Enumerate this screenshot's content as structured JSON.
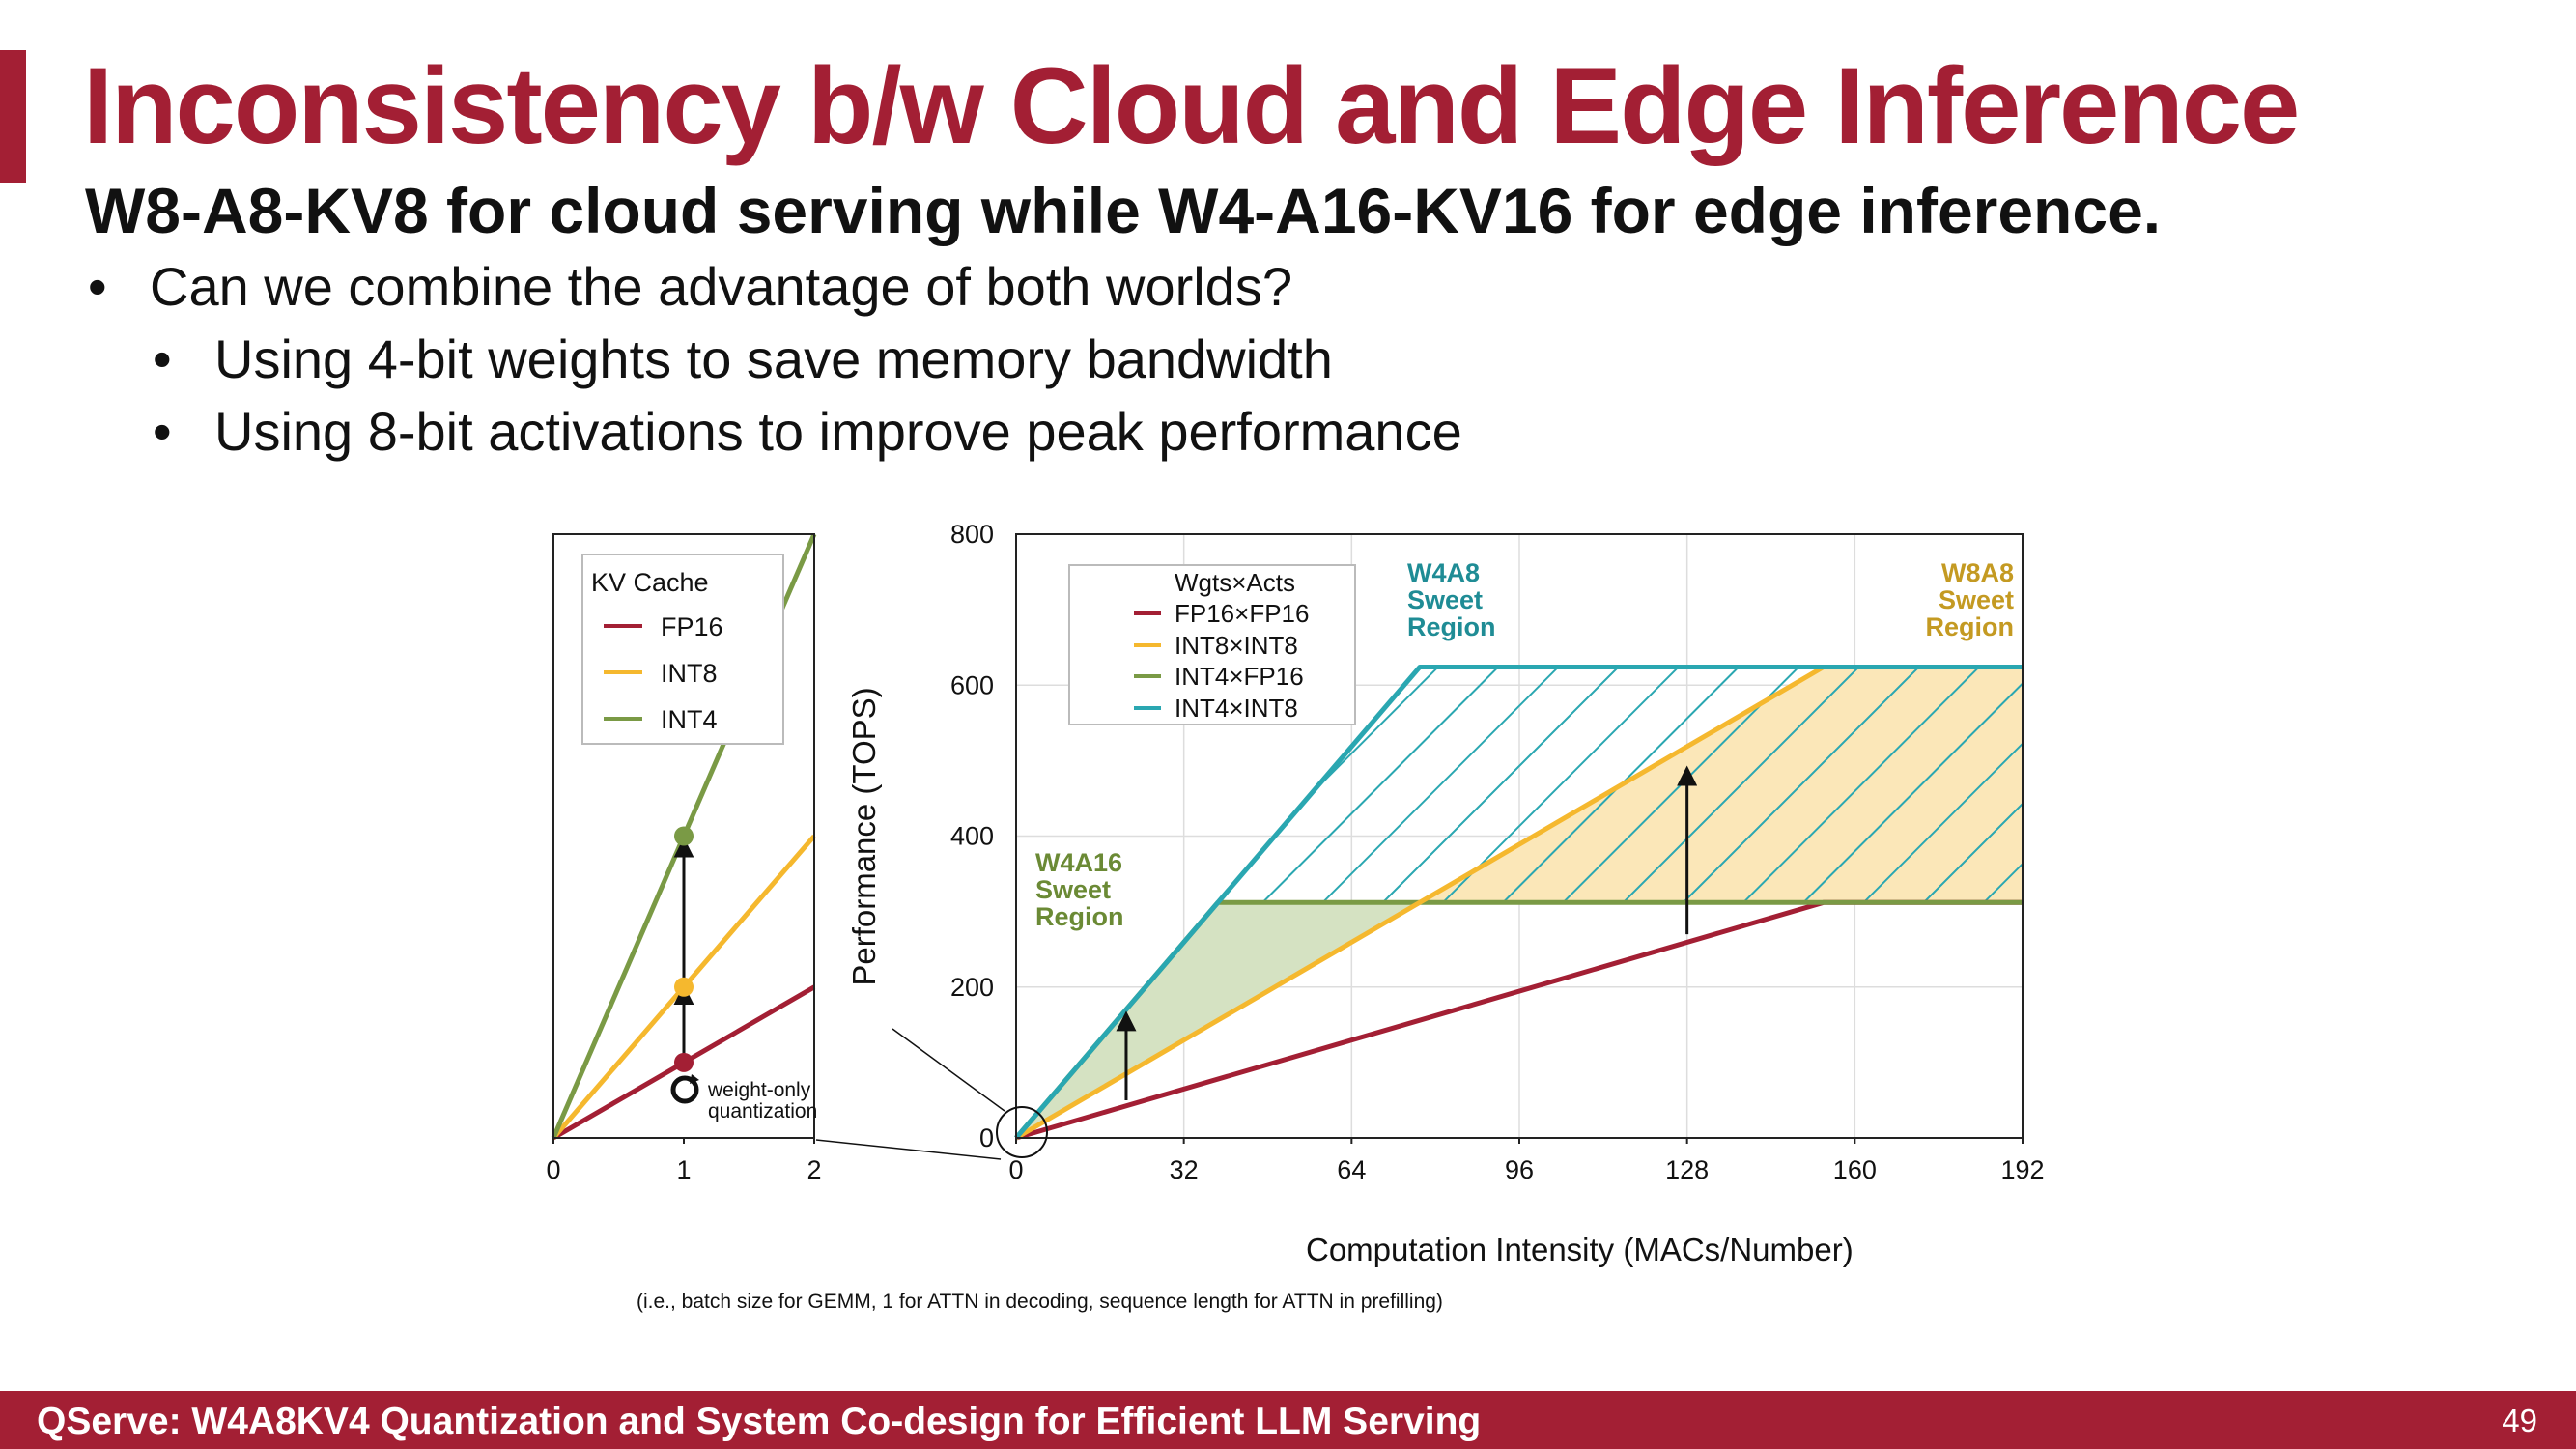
{
  "slide": {
    "title": "Inconsistency b/w Cloud and Edge Inference",
    "subtitle": "W8-A8-KV8 for cloud serving while W4-A16-KV16 for edge inference.",
    "bullets": [
      {
        "text": "Can we combine the advantage of both worlds?",
        "level": 1
      },
      {
        "text": "Using 4-bit weights to save memory bandwidth",
        "level": 2
      },
      {
        "text": "Using 8-bit activations to improve peak performance",
        "level": 2
      }
    ],
    "bullet_glyph": "•",
    "footer_text": "QServe: W4A8KV4 Quantization and System Co-design for Efficient LLM Serving",
    "page_number": "49"
  },
  "colors": {
    "accent": "#a31f34",
    "fp16": "#a31f34",
    "int8": "#f5b82e",
    "int4": "#7a9a45",
    "int4x8": "#2aa7b1",
    "w4a16_label": "#6b8a35",
    "w4a8_label": "#1f8c95",
    "w8a8_label": "#c49a22"
  },
  "chart_data": [
    {
      "type": "line",
      "x": [
        0,
        1,
        2
      ],
      "xlim": [
        0,
        2
      ],
      "ylim": [
        0,
        800
      ],
      "xticks": [
        "0",
        "1",
        "2"
      ],
      "grid": false,
      "legend": {
        "title": "KV Cache",
        "position": "top-left"
      },
      "series": [
        {
          "name": "FP16",
          "values": [
            0,
            100,
            200
          ],
          "color": "#a31f34"
        },
        {
          "name": "INT8",
          "values": [
            0,
            200,
            400
          ],
          "color": "#f5b82e"
        },
        {
          "name": "INT4",
          "values": [
            0,
            400,
            800
          ],
          "color": "#7a9a45"
        }
      ],
      "markers": [
        {
          "x": 1,
          "y": 100,
          "color": "#a31f34"
        },
        {
          "x": 1,
          "y": 200,
          "color": "#f5b82e"
        },
        {
          "x": 1,
          "y": 400,
          "color": "#7a9a45"
        }
      ],
      "arrows": [
        {
          "x": 1,
          "from": 110,
          "to": 190
        },
        {
          "x": 1,
          "from": 210,
          "to": 385
        }
      ],
      "annotation": [
        "weight-only",
        "quantization"
      ]
    },
    {
      "type": "line",
      "xlabel": "Computation Intensity (MACs/Number)",
      "ylabel": "Performance (TOPS)",
      "note": "(i.e., batch size for GEMM, 1 for ATTN in decoding, sequence length for ATTN in prefilling)",
      "xlim": [
        0,
        192
      ],
      "ylim": [
        0,
        800
      ],
      "xticks": [
        "0",
        "32",
        "64",
        "96",
        "128",
        "160",
        "192"
      ],
      "yticks": [
        "0",
        "200",
        "400",
        "600",
        "800"
      ],
      "grid": true,
      "legend": {
        "title": "Wgts×Acts",
        "position": "top-left"
      },
      "series": [
        {
          "name": "FP16×FP16",
          "x": [
            0,
            154,
            192
          ],
          "values": [
            0,
            312,
            312
          ],
          "color": "#a31f34"
        },
        {
          "name": "INT8×INT8",
          "x": [
            0,
            154,
            192
          ],
          "values": [
            0,
            624,
            624
          ],
          "color": "#f5b82e"
        },
        {
          "name": "INT4×FP16",
          "x": [
            0,
            38.5,
            192
          ],
          "values": [
            0,
            312,
            312
          ],
          "color": "#7a9a45"
        },
        {
          "name": "INT4×INT8",
          "x": [
            0,
            77,
            192
          ],
          "values": [
            0,
            624,
            624
          ],
          "color": "#2aa7b1"
        }
      ],
      "regions": [
        {
          "label": [
            "W4A16",
            "Sweet",
            "Region"
          ],
          "color": "#6b8a35"
        },
        {
          "label": [
            "W4A8",
            "Sweet",
            "Region"
          ],
          "color": "#1f8c95"
        },
        {
          "label": [
            "W8A8",
            "Sweet",
            "Region"
          ],
          "color": "#c49a22"
        }
      ],
      "arrows": [
        {
          "x": 21,
          "from": 50,
          "to": 155
        },
        {
          "x": 128,
          "from": 270,
          "to": 480
        }
      ]
    }
  ]
}
